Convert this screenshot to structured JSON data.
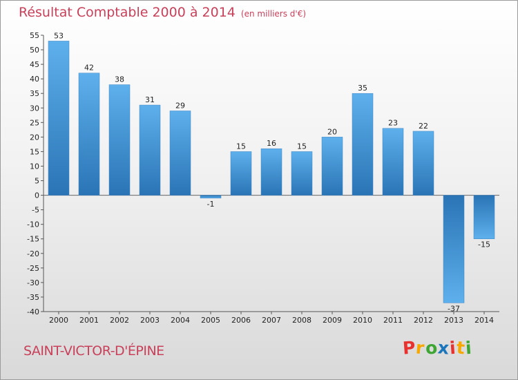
{
  "title": "Résultat Comptable 2000 à 2014",
  "subtitle": "(en milliers d'€)",
  "commune": "SAINT-VICTOR-D'ÉPINE",
  "logo": {
    "letters": [
      "P",
      "r",
      "o",
      "x",
      "i",
      "t",
      "i"
    ],
    "colors": [
      "#e8312f",
      "#f7a800",
      "#3fa535",
      "#1b75bb",
      "#e8312f",
      "#f7a800",
      "#3fa535"
    ]
  },
  "colors": {
    "bar_light": "#5eb0ec",
    "bar_dark": "#2a74b5",
    "title": "#c8405a"
  },
  "chart_data": {
    "type": "bar",
    "categories": [
      "2000",
      "2001",
      "2002",
      "2003",
      "2004",
      "2005",
      "2006",
      "2007",
      "2008",
      "2009",
      "2010",
      "2011",
      "2012",
      "2013",
      "2014"
    ],
    "values": [
      53,
      42,
      38,
      31,
      29,
      -1,
      15,
      16,
      15,
      20,
      35,
      23,
      22,
      -37,
      -15
    ],
    "data_labels": [
      "53",
      "42",
      "38",
      "31",
      "29",
      "-1",
      "15",
      "16",
      "15",
      "20",
      "35",
      "23",
      "22",
      "-37",
      "-15"
    ],
    "title": "Résultat Comptable 2000 à 2014",
    "ylim": [
      -40,
      55
    ],
    "yticks": [
      55,
      50,
      45,
      40,
      35,
      30,
      25,
      20,
      15,
      10,
      5,
      0,
      -5,
      -10,
      -15,
      -20,
      -25,
      -30,
      -35,
      -40
    ],
    "ytick_labels": [
      "55",
      "50",
      "45",
      "40",
      "35",
      "30",
      "25",
      "20",
      "15",
      "10",
      "5",
      "0",
      "-5",
      "-10",
      "-15",
      "-20",
      "-25",
      "-30",
      "-35",
      "-40"
    ],
    "grid": false,
    "legend": "none"
  }
}
